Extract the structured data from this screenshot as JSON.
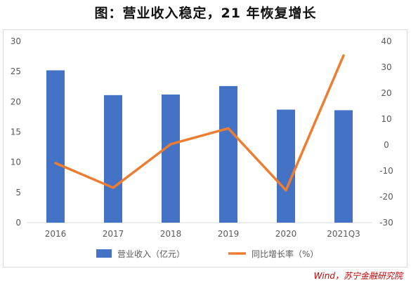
{
  "title": "图：营业收入稳定，21 年恢复增长",
  "source": "Wind，苏宁金融研究院",
  "chart_data": {
    "type": "bar",
    "categories": [
      "2016",
      "2017",
      "2018",
      "2019",
      "2020",
      "2021Q3"
    ],
    "series": [
      {
        "name": "营业收入（亿元）",
        "type": "bar",
        "axis": "left",
        "color": "#4472C4",
        "values": [
          25.2,
          21.1,
          21.2,
          22.6,
          18.7,
          18.6
        ]
      },
      {
        "name": "同比增长率（%）",
        "type": "line",
        "axis": "right",
        "color": "#ED7D31",
        "values": [
          -7.0,
          -16.5,
          0.3,
          6.4,
          -17.5,
          34.5
        ]
      }
    ],
    "y_left": {
      "min": 0,
      "max": 30,
      "ticks": [
        "0",
        "5",
        "10",
        "15",
        "20",
        "25",
        "30"
      ]
    },
    "y_right": {
      "min": -30,
      "max": 40,
      "ticks": [
        "-30",
        "-20",
        "-10",
        "0",
        "10",
        "20",
        "30",
        "40"
      ]
    },
    "grid": false,
    "legend": "bottom"
  }
}
